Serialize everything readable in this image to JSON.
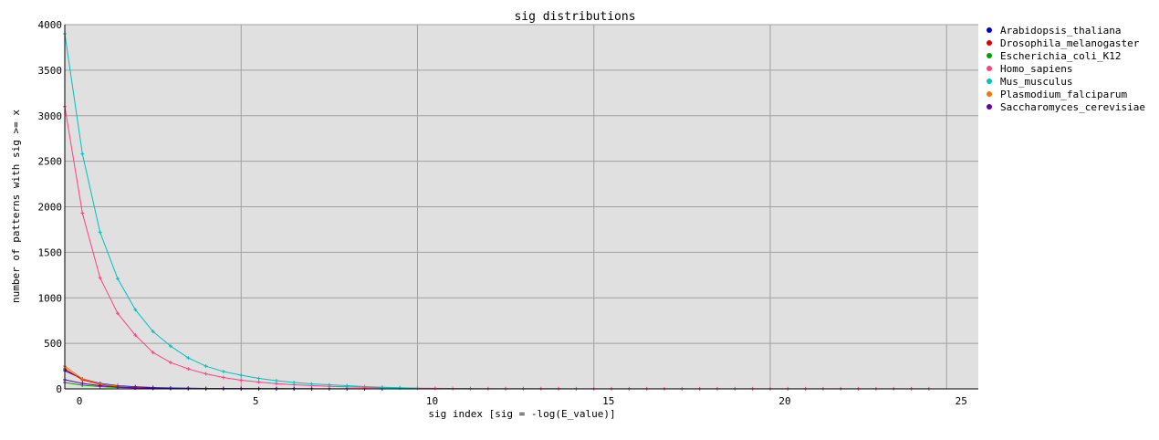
{
  "chart_data": {
    "type": "line",
    "title": "sig distributions",
    "xlabel": "sig index [sig = -log(E_value)]",
    "ylabel": "number of patterns with sig >= x",
    "xlim": [
      0,
      25.9
    ],
    "ylim": [
      0,
      4000
    ],
    "xticks": [
      0,
      5,
      10,
      15,
      20,
      25
    ],
    "yticks": [
      0,
      500,
      1000,
      1500,
      2000,
      2500,
      3000,
      3500,
      4000
    ],
    "grid": true,
    "legend_position": "right",
    "x_step": 0.5,
    "series": [
      {
        "name": "Arabidopsis_thaliana",
        "color": "#0000cc",
        "values": [
          200,
          110,
          60,
          35,
          22,
          15,
          10,
          7,
          5,
          4,
          3,
          2,
          2,
          1,
          1,
          1,
          1,
          1,
          1
        ]
      },
      {
        "name": "Drosophila_melanogaster",
        "color": "#e00000",
        "values": [
          220,
          100,
          50,
          30,
          15,
          8,
          4
        ]
      },
      {
        "name": "Escherichia_coli_K12",
        "color": "#00a000",
        "values": [
          70,
          40,
          25,
          15,
          10,
          7,
          5,
          4,
          3,
          2,
          2,
          1,
          1,
          1,
          1
        ]
      },
      {
        "name": "Homo_sapiens",
        "color": "#ff4080",
        "values": [
          3100,
          1930,
          1220,
          830,
          590,
          400,
          290,
          220,
          165,
          125,
          95,
          75,
          58,
          45,
          36,
          28,
          22,
          17,
          13,
          10,
          8,
          6,
          5,
          4,
          3,
          3,
          2,
          2,
          2,
          1,
          1,
          1,
          1,
          1,
          1,
          1,
          1,
          1,
          1,
          1,
          1,
          1,
          1,
          1,
          1,
          1,
          1,
          1,
          1,
          1
        ]
      },
      {
        "name": "Mus_musculus",
        "color": "#00c0c0",
        "values": [
          3900,
          2580,
          1720,
          1210,
          870,
          630,
          470,
          340,
          250,
          190,
          150,
          115,
          90,
          70,
          55,
          45,
          35,
          25,
          18,
          12,
          8
        ]
      },
      {
        "name": "Plasmodium_falciparum",
        "color": "#ff7000",
        "values": [
          250,
          110,
          55,
          30,
          15,
          8,
          5,
          3,
          2,
          1,
          1
        ]
      },
      {
        "name": "Saccharomyces_cerevisiae",
        "color": "#6600aa",
        "values": [
          100,
          60,
          35,
          20,
          12,
          8,
          5,
          4,
          3,
          2,
          2,
          1,
          1,
          1,
          1
        ]
      }
    ],
    "colors": {
      "plot_background": "#e0e0e0",
      "grid": "#a0a0a0"
    }
  }
}
